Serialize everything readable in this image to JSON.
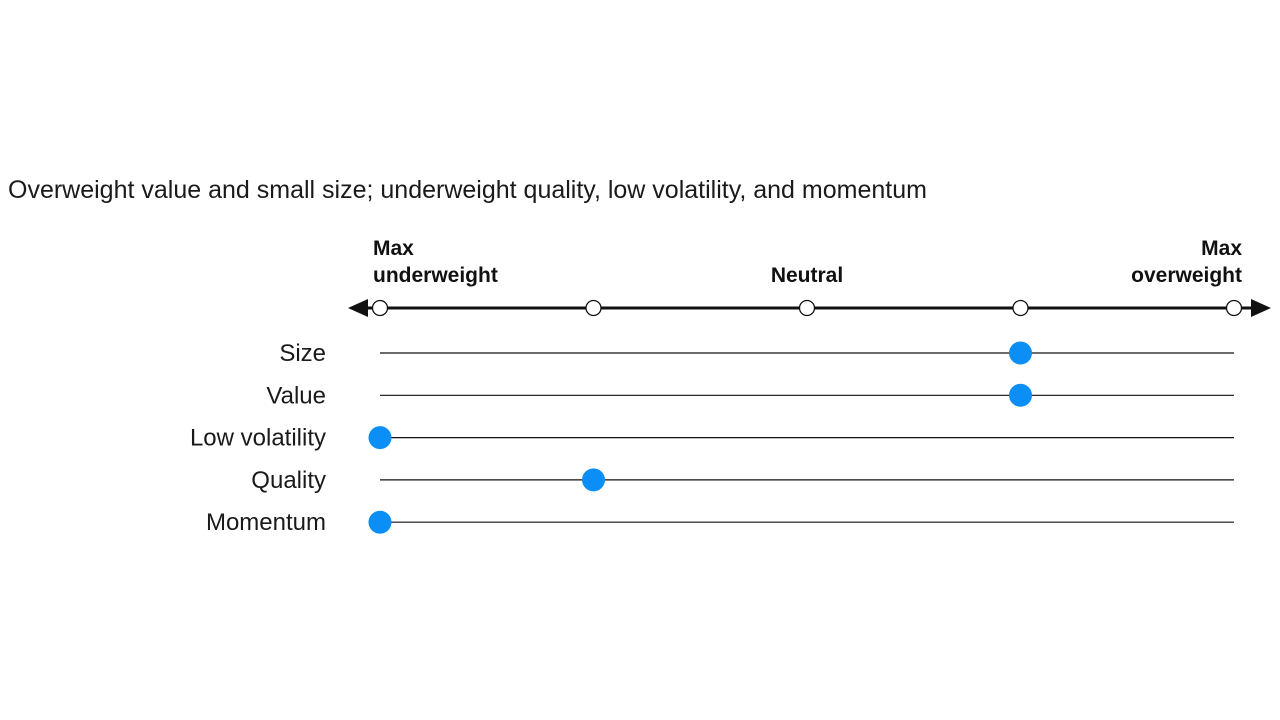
{
  "chart_data": {
    "type": "scatter",
    "title": "",
    "subtitle": "Overweight value and small size; underweight quality, low volatility, and momentum",
    "scale": {
      "min": 0,
      "max": 4,
      "ticks": [
        0,
        1,
        2,
        3,
        4
      ],
      "labels": [
        {
          "position": 0,
          "lines": [
            "Max",
            "underweight"
          ],
          "anchor": "start"
        },
        {
          "position": 2,
          "lines": [
            "Neutral"
          ],
          "anchor": "middle"
        },
        {
          "position": 4,
          "lines": [
            "Max",
            "overweight"
          ],
          "anchor": "end"
        }
      ]
    },
    "categories": [
      "Size",
      "Value",
      "Low volatility",
      "Quality",
      "Momentum"
    ],
    "values": [
      3,
      3,
      0,
      1,
      0
    ],
    "colors": {
      "marker": "#0b8ef5",
      "line": "#111111",
      "tick_fill": "#ffffff"
    }
  }
}
